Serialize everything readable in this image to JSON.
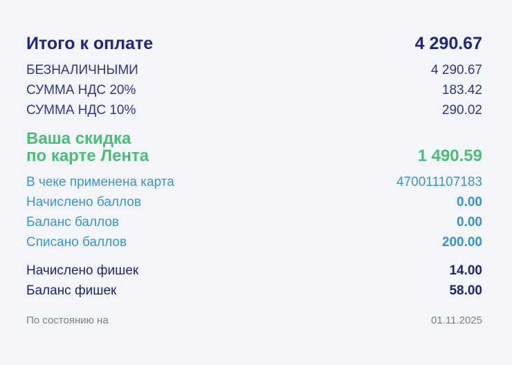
{
  "total": {
    "label": "Итого к оплате",
    "value": "4 290.67"
  },
  "payments": [
    {
      "label": "БЕЗНАЛИЧНЫМИ",
      "value": "4 290.67"
    },
    {
      "label": "СУММА НДС 20%",
      "value": "183.42"
    },
    {
      "label": "СУММА НДС 10%",
      "value": "290.02"
    }
  ],
  "discount": {
    "label_line1": "Ваша скидка",
    "label_line2": "по карте Лента",
    "value": "1 490.59"
  },
  "card": {
    "label": "В чеке применена карта",
    "value": "470011107183"
  },
  "points": [
    {
      "label": "Начислено баллов",
      "value": "0.00"
    },
    {
      "label": "Баланс баллов",
      "value": "0.00"
    },
    {
      "label": "Списано баллов",
      "value": "200.00"
    }
  ],
  "chips": [
    {
      "label": "Начислено фишек",
      "value": "14.00"
    },
    {
      "label": "Баланс фишек",
      "value": "58.00"
    }
  ],
  "status": {
    "label": "По состоянию на",
    "date": "01.11.2025"
  },
  "colors": {
    "dark_blue": "#1f2580",
    "green": "#4dbb7c",
    "light_blue": "#3a95c6",
    "grey": "#7a7d86",
    "background": "#f4f5f9"
  }
}
